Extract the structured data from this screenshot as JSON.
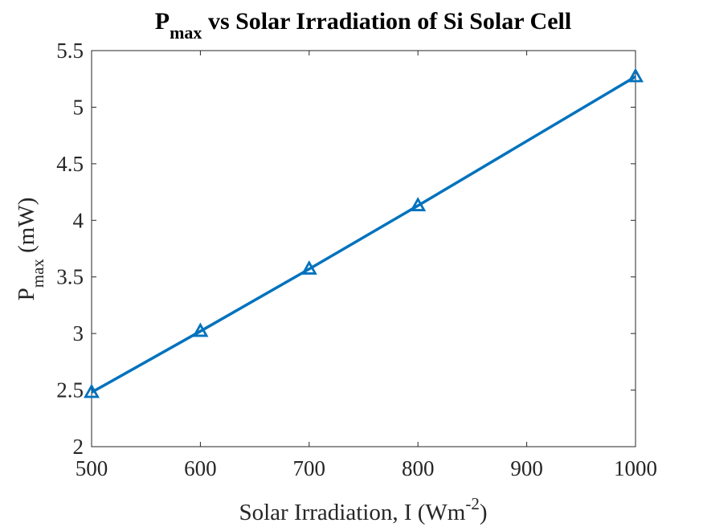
{
  "chart_data": {
    "type": "line",
    "title": {
      "main": "P",
      "sub": "max",
      "rest": " vs Solar Irradiation of Si Solar Cell"
    },
    "xlabel": {
      "main": "Solar Irradiation, I (Wm",
      "sup": "-2",
      "end": ")"
    },
    "ylabel": {
      "main": "P",
      "sub": "max",
      "rest": " (mW)"
    },
    "xlim": [
      500,
      1000
    ],
    "ylim": [
      2,
      5.5
    ],
    "xticks": [
      500,
      600,
      700,
      800,
      900,
      1000
    ],
    "yticks": [
      2,
      2.5,
      3,
      3.5,
      4,
      4.5,
      5,
      5.5
    ],
    "ytick_labels": [
      "2",
      "2.5",
      "3",
      "3.5",
      "4",
      "4.5",
      "5",
      "5.5"
    ],
    "grid": false,
    "series": [
      {
        "x": [
          500,
          600,
          700,
          800,
          1000
        ],
        "y": [
          2.48,
          3.02,
          3.57,
          4.13,
          5.27
        ],
        "color": "#0072BD",
        "marker": "triangle"
      }
    ]
  }
}
